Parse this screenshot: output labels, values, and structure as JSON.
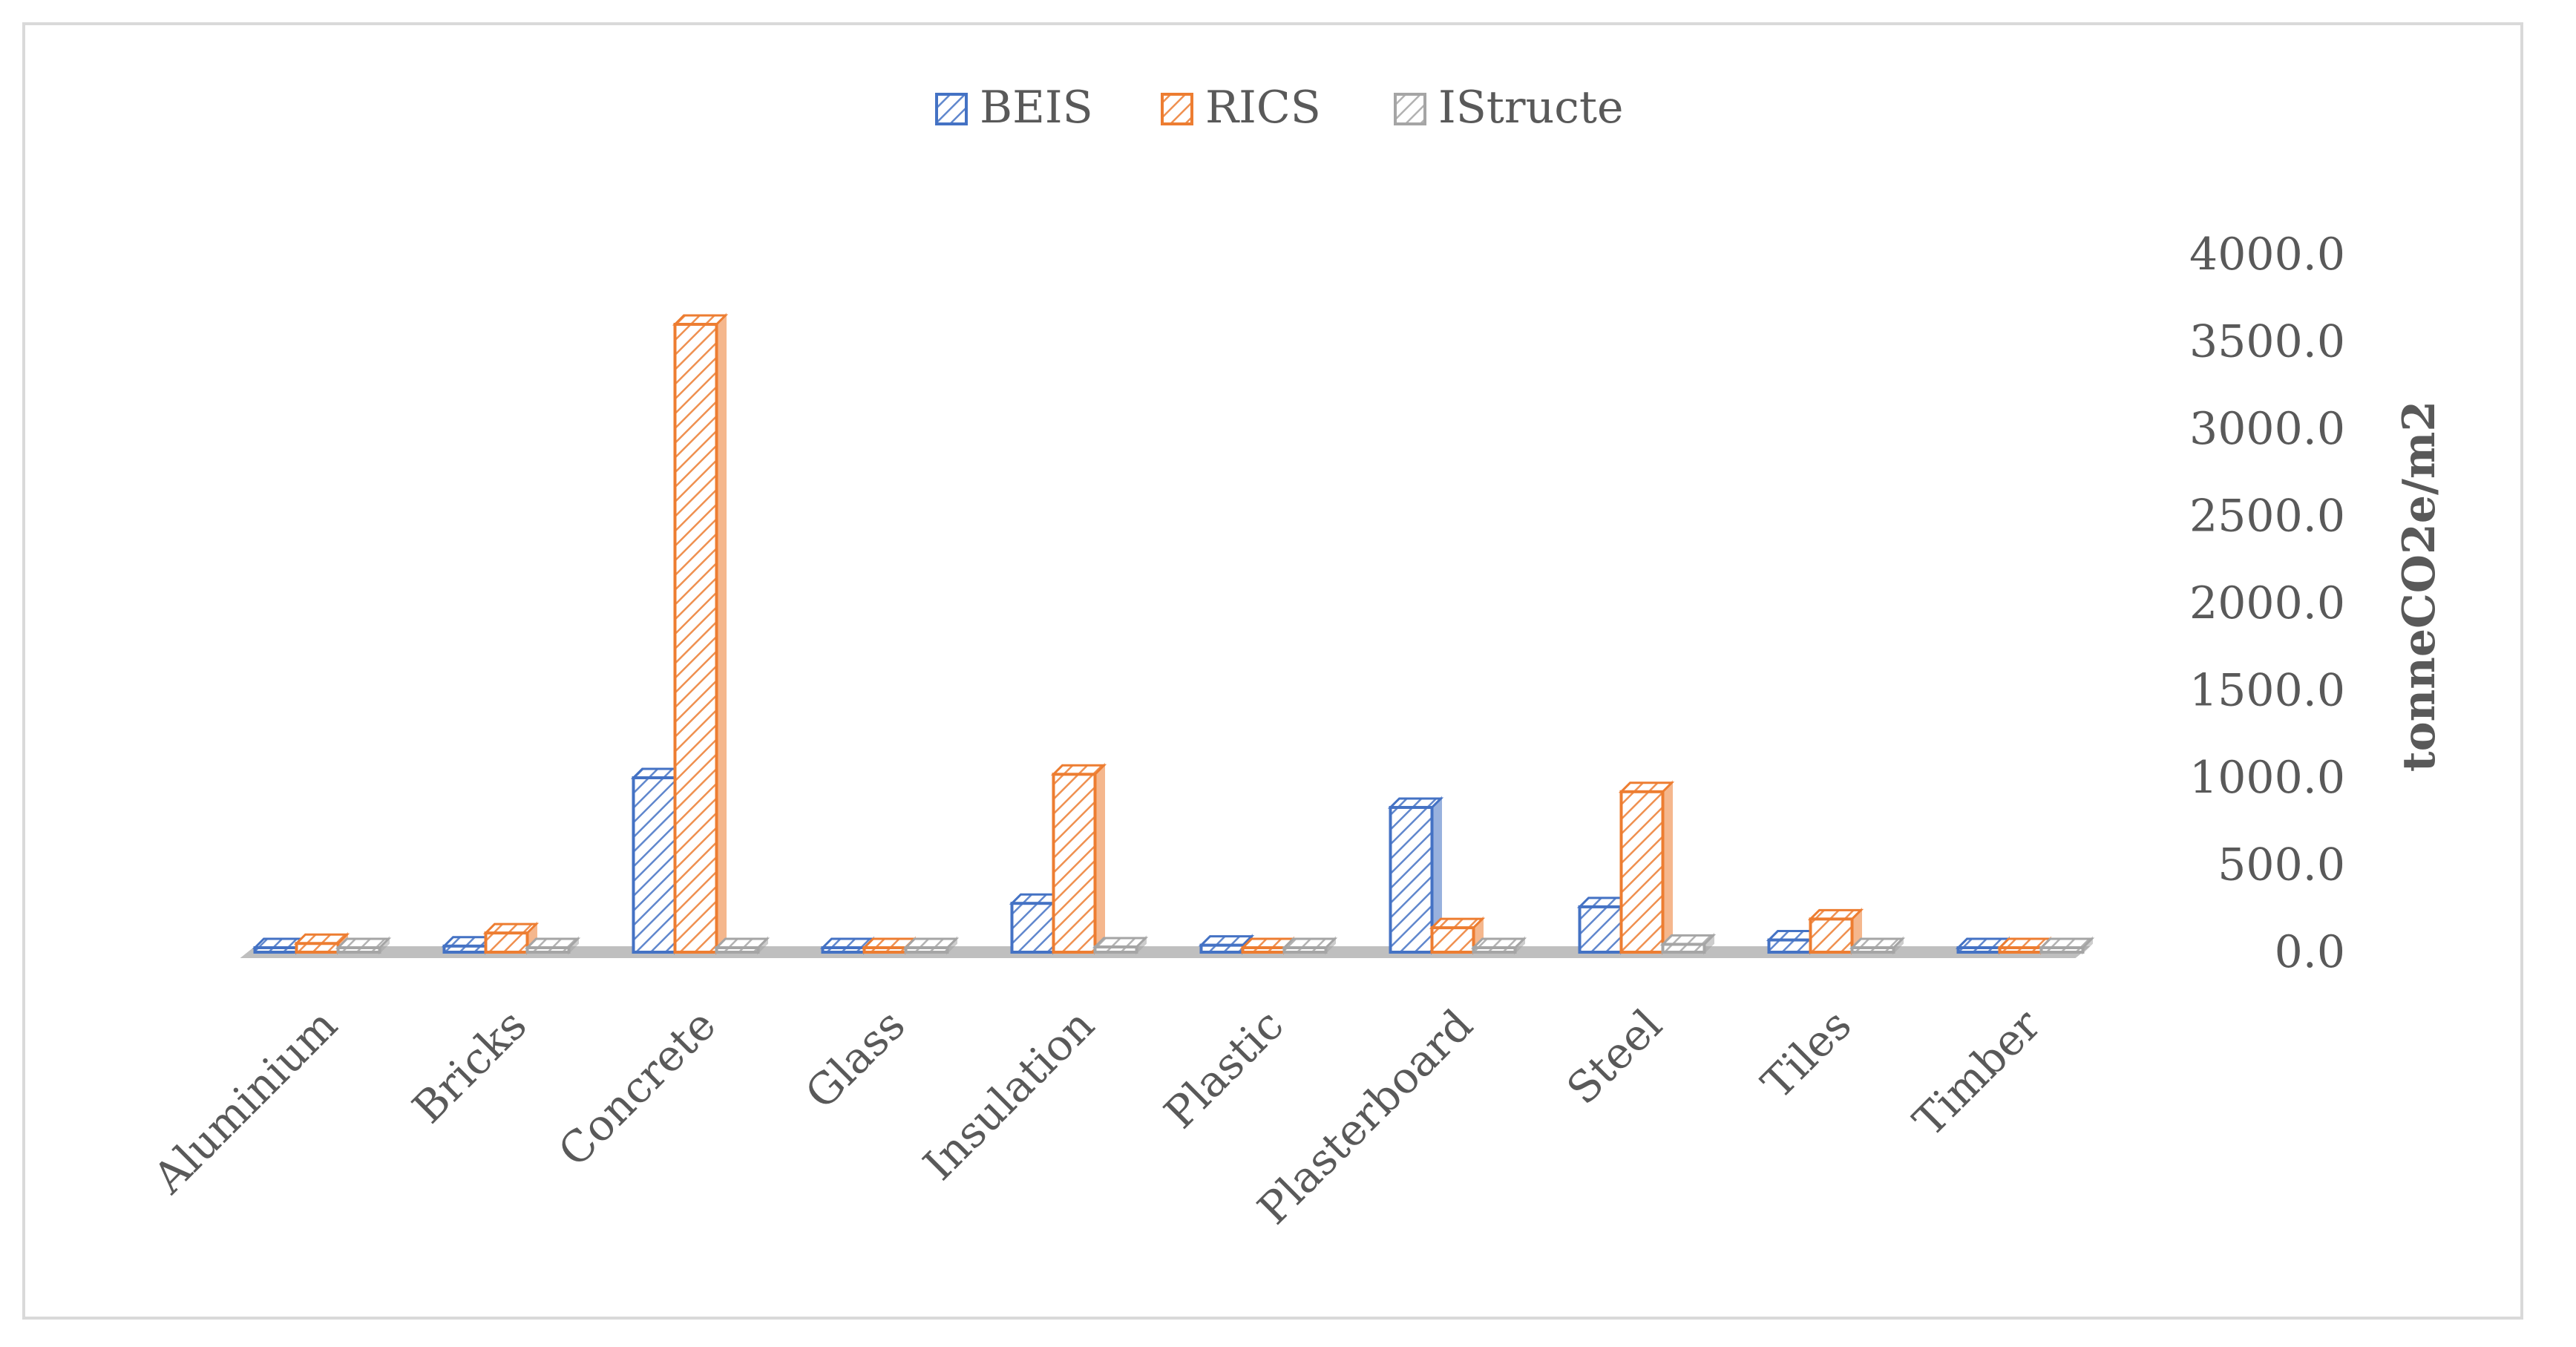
{
  "chart_data": {
    "type": "bar",
    "subtype": "3d-clustered-column",
    "categories": [
      "Aluminium",
      "Bricks",
      "Concrete",
      "Glass",
      "Insulation",
      "Plastic",
      "Plasterboard",
      "Steel",
      "Tiles",
      "Timber"
    ],
    "series": [
      {
        "name": "BEIS",
        "color": "#4472c4",
        "values": [
          20,
          35,
          1000,
          25,
          280,
          40,
          830,
          260,
          70,
          5
        ]
      },
      {
        "name": "RICS",
        "color": "#ed7d31",
        "values": [
          50,
          110,
          3600,
          20,
          1020,
          25,
          140,
          920,
          190,
          5
        ]
      },
      {
        "name": "IStructe",
        "color": "#a5a5a5",
        "values": [
          10,
          15,
          20,
          10,
          30,
          10,
          15,
          45,
          10,
          5
        ]
      }
    ],
    "ylabel": "tonneCO2e/m2",
    "ylim": [
      0,
      4000
    ],
    "yticks": [
      "0.0",
      "500.0",
      "1000.0",
      "1500.0",
      "2000.0",
      "2500.0",
      "3000.0",
      "3500.0",
      "4000.0"
    ],
    "y_axis_side": "right",
    "legend_position": "top",
    "gridlines": false,
    "bar_pattern": "hatched"
  }
}
